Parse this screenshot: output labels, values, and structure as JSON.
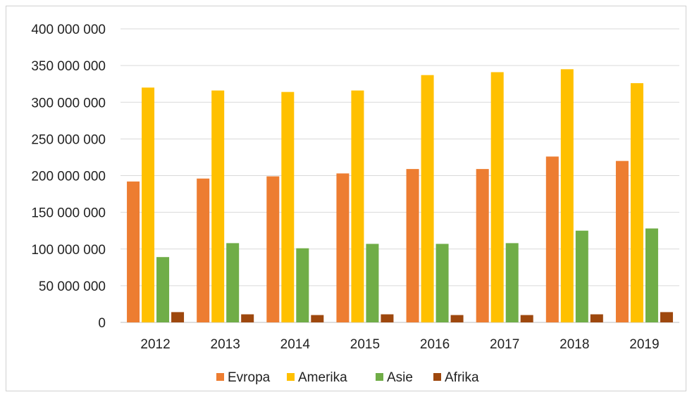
{
  "chart_data": {
    "type": "bar",
    "categories": [
      "2012",
      "2013",
      "2014",
      "2015",
      "2016",
      "2017",
      "2018",
      "2019"
    ],
    "series": [
      {
        "name": "Evropa",
        "color": "#ED7D31",
        "values": [
          192000000,
          196000000,
          199000000,
          203000000,
          209000000,
          209000000,
          226000000,
          220000000
        ]
      },
      {
        "name": "Amerika",
        "color": "#FFC000",
        "values": [
          320000000,
          316000000,
          314000000,
          316000000,
          337000000,
          341000000,
          345000000,
          326000000
        ]
      },
      {
        "name": "Asie",
        "color": "#70AD47",
        "values": [
          89000000,
          108000000,
          101000000,
          107000000,
          107000000,
          108000000,
          125000000,
          128000000
        ]
      },
      {
        "name": "Afrika",
        "color": "#9E480E",
        "values": [
          14000000,
          11000000,
          10000000,
          11000000,
          10000000,
          10000000,
          11000000,
          14000000
        ]
      }
    ],
    "ylim": [
      0,
      400000000
    ],
    "yticks": [
      0,
      50000000,
      100000000,
      150000000,
      200000000,
      250000000,
      300000000,
      350000000,
      400000000
    ],
    "ytick_labels": [
      "0",
      "50 000 000",
      "100 000 000",
      "150 000 000",
      "200 000 000",
      "250 000 000",
      "300 000 000",
      "350 000 000",
      "400 000 000"
    ],
    "title": "",
    "xlabel": "",
    "ylabel": "",
    "grid": "horizontal",
    "legend_position": "bottom"
  }
}
